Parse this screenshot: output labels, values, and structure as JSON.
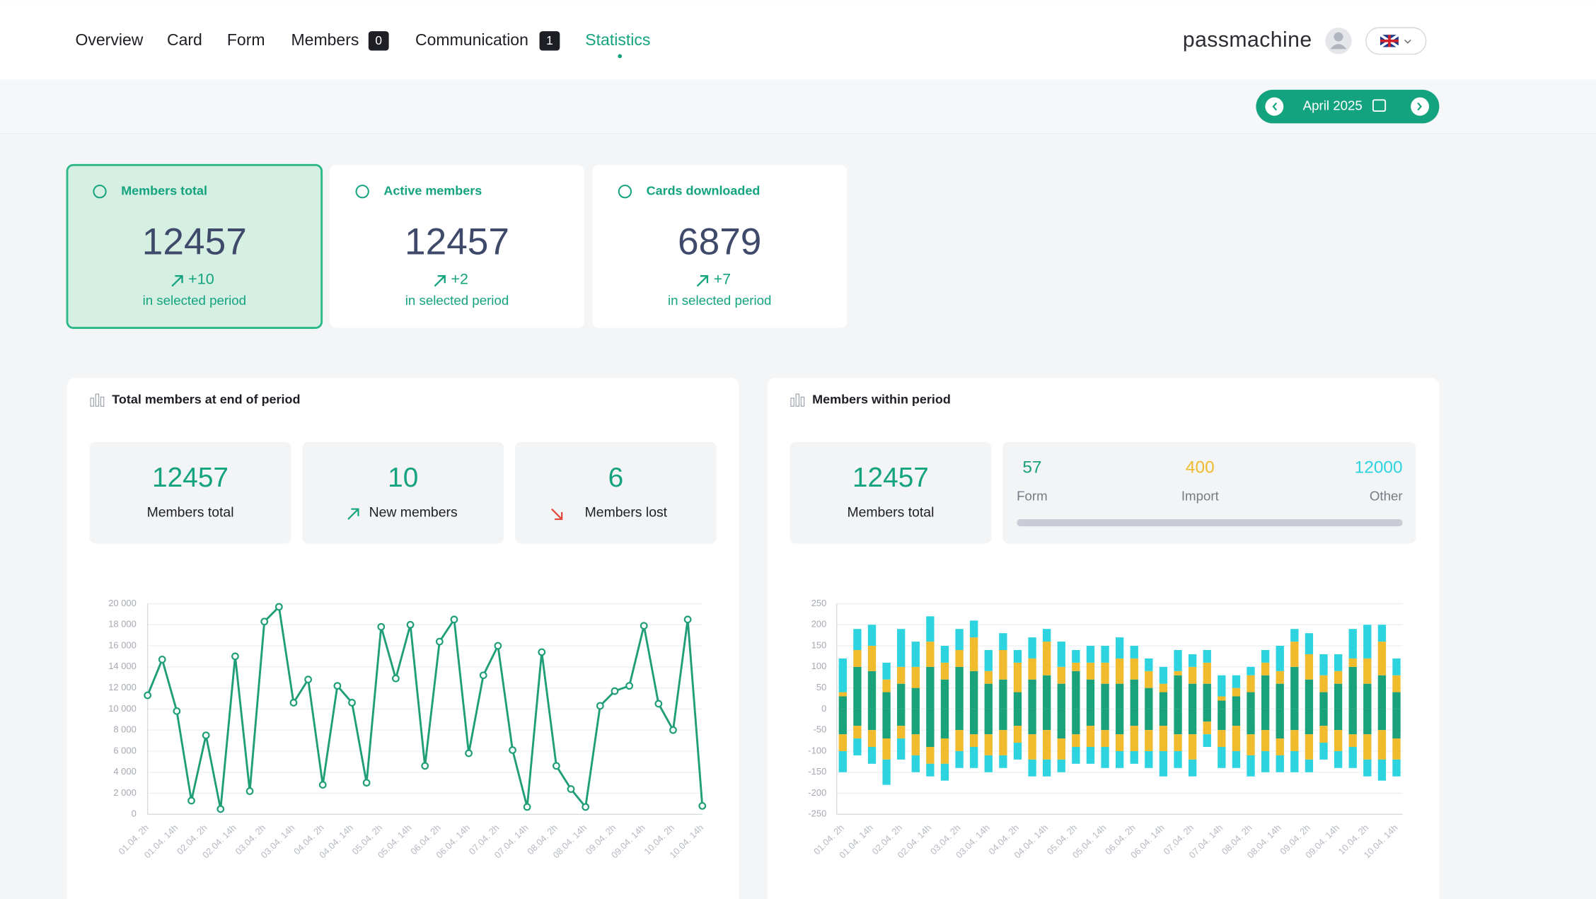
{
  "nav": {
    "items": [
      {
        "label": "Overview"
      },
      {
        "label": "Card"
      },
      {
        "label": "Form"
      },
      {
        "label": "Members",
        "badge": 0
      },
      {
        "label": "Communication",
        "badge": 1
      },
      {
        "label": "Statistics"
      }
    ],
    "brand": "passmachine"
  },
  "period": "April 2025",
  "cards": [
    {
      "title": "Members total",
      "value": 12457,
      "change": "+10",
      "note": "in selected period"
    },
    {
      "title": "Active members",
      "value": 12457,
      "change": "+2",
      "note": "in selected period"
    },
    {
      "title": "Cards downloaded",
      "value": 6879,
      "change": "+7",
      "note": "in selected period"
    }
  ],
  "panels": [
    {
      "title": "Total members at end of period",
      "stats": [
        {
          "value": 12457,
          "label": "Members total"
        },
        {
          "value": 10,
          "label": "New members"
        },
        {
          "value": 6,
          "label": "Members lost"
        }
      ]
    },
    {
      "title": "Members within period",
      "stats": [
        {
          "value": 12457,
          "label": "Members total"
        }
      ],
      "sources": [
        {
          "value": 57,
          "label": "Form",
          "color": "#1aa37a"
        },
        {
          "value": 400,
          "label": "Import",
          "color": "#f0bb2d"
        },
        {
          "value": 12000,
          "label": "Other",
          "color": "#2dd4e0"
        }
      ]
    }
  ],
  "chart_data": [
    {
      "type": "line",
      "color": "#1f9e78",
      "grid": true,
      "categories": [
        "01.04. 2h",
        null,
        "01.04. 14h",
        null,
        "02.04. 2h",
        null,
        "02.04. 14h",
        null,
        "03.04. 2h",
        null,
        "03.04. 14h",
        null,
        "04.04. 2h",
        null,
        "04.04. 14h",
        null,
        "05.04. 2h",
        null,
        "05.04. 14h",
        null,
        "06.04. 2h",
        null,
        "06.04. 14h",
        null,
        "07.04. 2h",
        null,
        "07.04. 14h",
        null,
        "08.04. 2h",
        null,
        "08.04. 14h",
        null,
        "09.04. 2h",
        null,
        "09.04. 14h",
        null,
        "10.04. 2h",
        null,
        "10.04. 14h"
      ],
      "values": [
        11300,
        14700,
        9800,
        1300,
        7500,
        500,
        15000,
        2200,
        18300,
        19700,
        10600,
        12800,
        2800,
        12200,
        10600,
        3000,
        17800,
        12900,
        18000,
        4600,
        16400,
        18500,
        5800,
        13200,
        16000,
        6100,
        700,
        15400,
        4600,
        2400,
        700,
        10300,
        11700,
        12200,
        17900,
        10500,
        8000,
        18500,
        800
      ],
      "ylim": [
        0,
        20000
      ],
      "yticks": [
        0,
        {
          "value": 2000,
          "label": "2 000"
        },
        {
          "value": 4000,
          "label": "4 000"
        },
        {
          "value": 6000,
          "label": "6 000"
        },
        {
          "value": 8000,
          "label": "8 000"
        },
        {
          "value": 10000,
          "label": "10 000"
        },
        {
          "value": 12000,
          "label": "12 000"
        },
        {
          "value": 14000,
          "label": "14 000"
        },
        {
          "value": 16000,
          "label": "16 000"
        },
        {
          "value": 18000,
          "label": "18 000"
        },
        {
          "value": 20000,
          "label": "20 000"
        }
      ]
    },
    {
      "type": "stacked_bar",
      "grid": true,
      "categories": [
        "01.04. 2h",
        null,
        "01.04. 14h",
        null,
        "02.04. 2h",
        null,
        "02.04. 14h",
        null,
        "03.04. 2h",
        null,
        "03.04. 14h",
        null,
        "04.04. 2h",
        null,
        "04.04. 14h",
        null,
        "05.04. 2h",
        null,
        "05.04. 14h",
        null,
        "06.04. 2h",
        null,
        "06.04. 14h",
        null,
        "07.04. 2h",
        null,
        "07.04. 14h",
        null,
        "08.04. 2h",
        null,
        "08.04. 14h",
        null,
        "09.04. 2h",
        null,
        "09.04. 14h",
        null,
        "10.04. 2h",
        null,
        "10.04. 14h"
      ],
      "series": [
        {
          "color": "#1aa37a",
          "values": [
            30,
            100,
            90,
            40,
            60,
            50,
            100,
            70,
            100,
            90,
            60,
            70,
            40,
            70,
            80,
            60,
            90,
            70,
            60,
            60,
            70,
            50,
            40,
            80,
            60,
            60,
            20,
            30,
            40,
            80,
            60,
            100,
            70,
            40,
            60,
            100,
            60,
            80,
            40
          ]
        },
        {
          "color": "#f0bb2d",
          "values": [
            10,
            40,
            60,
            30,
            40,
            50,
            60,
            40,
            40,
            80,
            30,
            70,
            70,
            50,
            80,
            40,
            20,
            40,
            50,
            60,
            50,
            40,
            20,
            10,
            40,
            50,
            10,
            20,
            40,
            30,
            30,
            60,
            60,
            40,
            30,
            20,
            60,
            80,
            40
          ]
        },
        {
          "color": "#2dd4e0",
          "values": [
            80,
            50,
            50,
            40,
            90,
            60,
            60,
            40,
            50,
            40,
            50,
            40,
            30,
            50,
            30,
            60,
            30,
            40,
            40,
            50,
            30,
            30,
            40,
            50,
            30,
            30,
            50,
            30,
            20,
            30,
            60,
            30,
            50,
            50,
            40,
            70,
            80,
            40,
            40
          ]
        },
        {
          "color": "#1aa37a",
          "values": [
            -60,
            -40,
            -50,
            -70,
            -40,
            -60,
            -90,
            -70,
            -50,
            -60,
            -60,
            -50,
            -40,
            -60,
            -50,
            -70,
            -60,
            -40,
            -50,
            -60,
            -40,
            -50,
            -40,
            -60,
            -60,
            -30,
            -50,
            -40,
            -60,
            -50,
            -70,
            -50,
            -60,
            -40,
            -50,
            -60,
            -60,
            -50,
            -70
          ]
        },
        {
          "color": "#f0bb2d",
          "values": [
            -40,
            -30,
            -40,
            -50,
            -30,
            -50,
            -40,
            -60,
            -50,
            -30,
            -50,
            -60,
            -40,
            -60,
            -70,
            -50,
            -30,
            -50,
            -40,
            -40,
            -60,
            -50,
            -60,
            -40,
            -60,
            -30,
            -40,
            -60,
            -50,
            -50,
            -40,
            -50,
            -60,
            -40,
            -50,
            -30,
            -60,
            -70,
            -50
          ]
        },
        {
          "color": "#2dd4e0",
          "values": [
            -50,
            -40,
            -40,
            -60,
            -50,
            -40,
            -30,
            -40,
            -40,
            -50,
            -40,
            -30,
            -40,
            -40,
            -40,
            -30,
            -40,
            -40,
            -50,
            -40,
            -30,
            -40,
            -60,
            -40,
            -40,
            -30,
            -50,
            -40,
            -50,
            -50,
            -40,
            -50,
            -30,
            -40,
            -40,
            -50,
            -40,
            -50,
            -40
          ]
        }
      ],
      "ylim": [
        -250,
        250
      ],
      "yticks": [
        -250,
        -200,
        -150,
        -100,
        -50,
        0,
        50,
        100,
        150,
        200,
        250
      ]
    }
  ]
}
